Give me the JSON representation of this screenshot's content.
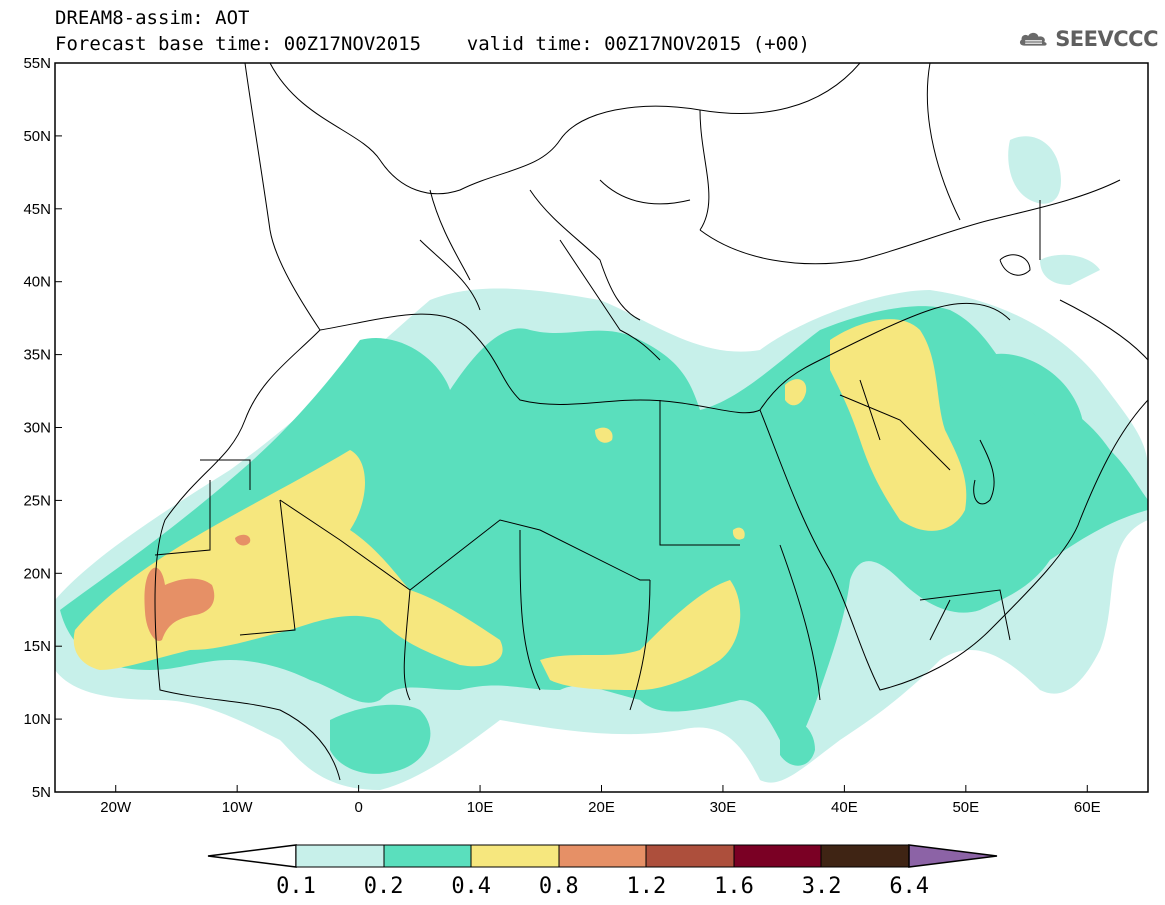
{
  "header": {
    "title": "DREAM8-assim: AOT",
    "forecast_line": "Forecast base time: 00Z17NOV2015    valid time: 00Z17NOV2015 (+00)",
    "logo_text": "SEEVCCC"
  },
  "icons": {
    "logo": "cloud-logo-icon"
  },
  "map": {
    "lat_labels": [
      "55N",
      "50N",
      "45N",
      "40N",
      "35N",
      "30N",
      "25N",
      "20N",
      "15N",
      "10N",
      "5N"
    ],
    "lon_labels": [
      "20W",
      "10W",
      "0",
      "10E",
      "20E",
      "30E",
      "40E",
      "50E",
      "60E"
    ],
    "lat_range": [
      5,
      55
    ],
    "lon_range": [
      -25,
      65
    ]
  },
  "colorbar": {
    "labels": [
      "0.1",
      "0.2",
      "0.4",
      "0.8",
      "1.2",
      "1.6",
      "3.2",
      "6.4"
    ],
    "colors": [
      "#ffffff",
      "#c7f0ea",
      "#5adfbd",
      "#f6e77e",
      "#e69066",
      "#ad4f3c",
      "#7a0024",
      "#3f2414",
      "#8c63a6"
    ]
  },
  "colors": {
    "aot_0_1_0_2": "#c7f0ea",
    "aot_0_2_0_4": "#5adfbd",
    "aot_0_4_0_8": "#f6e77e",
    "aot_0_8_1_2": "#e69066",
    "border": "#000000"
  }
}
